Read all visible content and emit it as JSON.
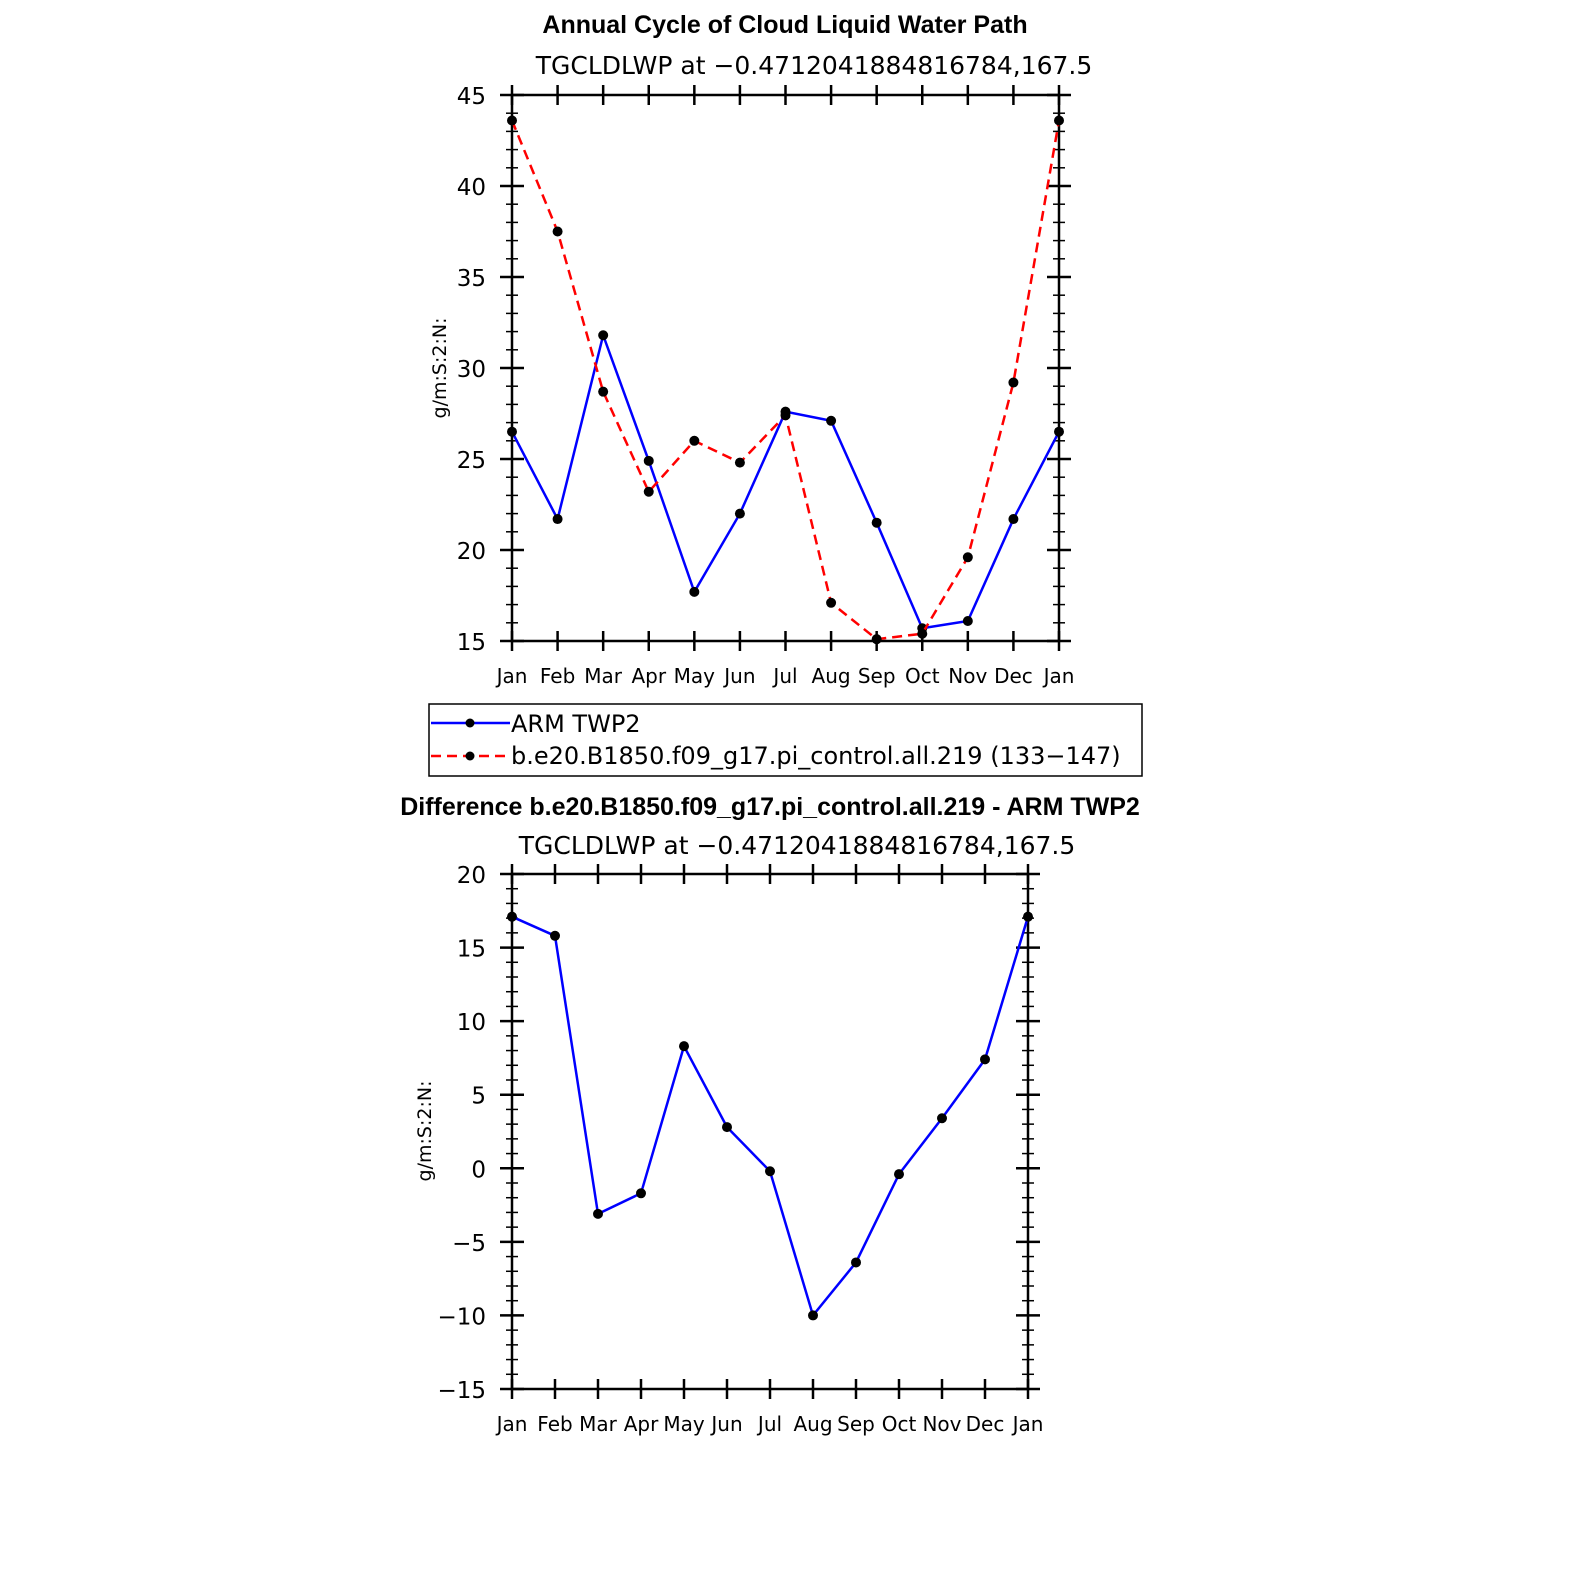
{
  "chart_data": [
    {
      "type": "line",
      "title": "Annual Cycle of Cloud Liquid Water Path",
      "subtitle": "TGCLDLWP at −0.4712041884816784,167.5",
      "ylabel": "g/m:S:2:N:",
      "xlabel": "",
      "categories": [
        "Jan",
        "Feb",
        "Mar",
        "Apr",
        "May",
        "Jun",
        "Jul",
        "Aug",
        "Sep",
        "Oct",
        "Nov",
        "Dec",
        "Jan"
      ],
      "ylim": [
        15,
        45
      ],
      "yticks": [
        "15",
        "20",
        "25",
        "30",
        "35",
        "40",
        "45"
      ],
      "grid": false,
      "legend_position": "below",
      "series": [
        {
          "name": "ARM TWP2",
          "color": "#0000ff",
          "dash": "solid",
          "values": [
            26.5,
            21.7,
            31.8,
            24.9,
            17.7,
            22.0,
            27.6,
            27.1,
            21.5,
            15.7,
            16.1,
            21.7,
            26.5
          ]
        },
        {
          "name": "b.e20.B1850.f09_g17.pi_control.all.219 (133−147)",
          "color": "#ff0000",
          "dash": "dashed",
          "values": [
            43.6,
            37.5,
            28.7,
            23.2,
            26.0,
            24.8,
            27.4,
            17.1,
            15.1,
            15.4,
            19.6,
            29.2,
            43.6
          ]
        }
      ]
    },
    {
      "type": "line",
      "title": "Difference b.e20.B1850.f09_g17.pi_control.all.219 - ARM TWP2",
      "subtitle": "TGCLDLWP at −0.4712041884816784,167.5",
      "ylabel": "g/m:S:2:N:",
      "xlabel": "",
      "categories": [
        "Jan",
        "Feb",
        "Mar",
        "Apr",
        "May",
        "Jun",
        "Jul",
        "Aug",
        "Sep",
        "Oct",
        "Nov",
        "Dec",
        "Jan"
      ],
      "ylim": [
        -15,
        20
      ],
      "yticks": [
        "−15",
        "−10",
        "−5",
        "0",
        "5",
        "10",
        "15",
        "20"
      ],
      "grid": false,
      "series": [
        {
          "color": "#0000ff",
          "dash": "solid",
          "values": [
            17.1,
            15.8,
            -3.1,
            -1.7,
            8.3,
            2.8,
            -0.2,
            -10.0,
            -6.4,
            -0.4,
            3.4,
            7.4,
            17.1
          ]
        }
      ]
    }
  ]
}
